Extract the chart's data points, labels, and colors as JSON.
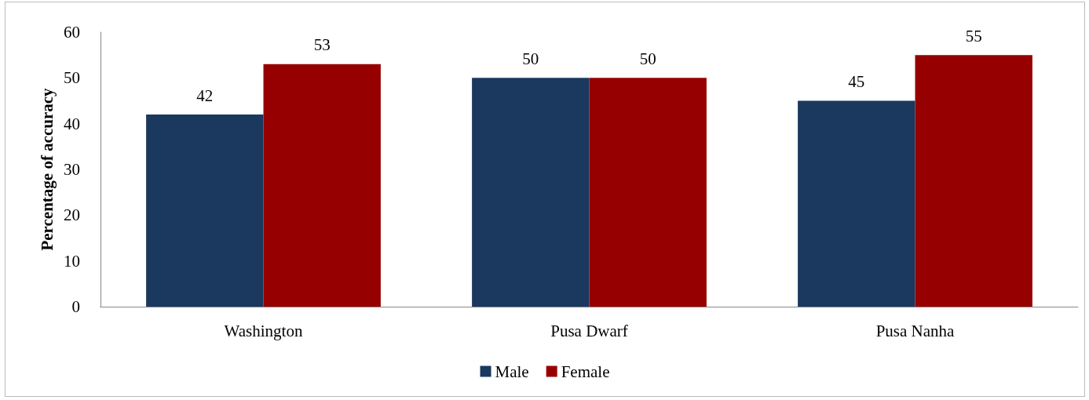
{
  "chart_data": {
    "type": "bar",
    "ylabel": "Percentage of accuracy",
    "categories": [
      "Washington",
      "Pusa Dwarf",
      "Pusa Nanha"
    ],
    "series": [
      {
        "name": "Male",
        "color": "#1b385e",
        "values": [
          42,
          50,
          45
        ]
      },
      {
        "name": "Female",
        "color": "#960000",
        "values": [
          53,
          50,
          55
        ]
      }
    ],
    "ylim": [
      0,
      60
    ],
    "yticks": [
      0,
      10,
      20,
      30,
      40,
      50,
      60
    ],
    "grid": false,
    "legend": "bottom",
    "data_labels": true
  }
}
